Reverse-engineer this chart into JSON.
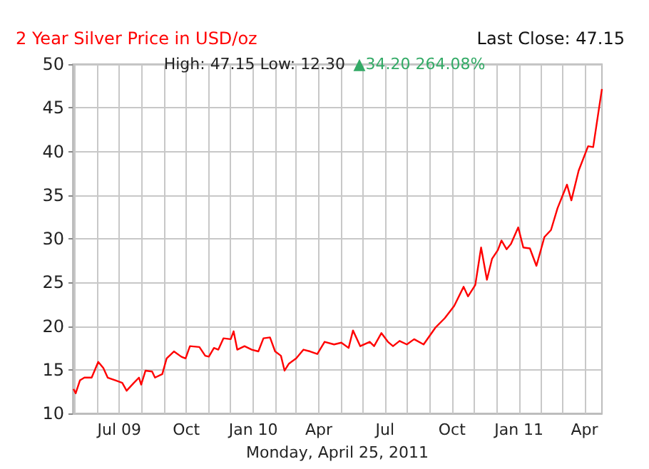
{
  "chart_data": {
    "type": "line",
    "title": "2 Year Silver Price in USD/oz",
    "subtitle": "High: 47.15 Low: 12.30",
    "xlabel": "Monday, April 25, 2011",
    "annotations": [
      "Last Close: 47.15",
      "▲34.20 264.08%"
    ],
    "x": [
      "2009-04-29",
      "2009-05-02",
      "2009-05-08",
      "2009-05-14",
      "2009-05-24",
      "2009-06-02",
      "2009-06-09",
      "2009-06-15",
      "2009-06-25",
      "2009-07-05",
      "2009-07-11",
      "2009-07-21",
      "2009-07-28",
      "2009-07-31",
      "2009-08-06",
      "2009-08-15",
      "2009-08-19",
      "2009-08-29",
      "2009-09-04",
      "2009-09-14",
      "2009-09-24",
      "2009-09-30",
      "2009-10-06",
      "2009-10-19",
      "2009-10-27",
      "2009-11-01",
      "2009-11-08",
      "2009-11-14",
      "2009-11-21",
      "2009-12-01",
      "2009-12-05",
      "2009-12-10",
      "2009-12-20",
      "2009-12-30",
      "2010-01-08",
      "2010-01-15",
      "2010-01-24",
      "2010-01-31",
      "2010-02-08",
      "2010-02-13",
      "2010-02-19",
      "2010-03-01",
      "2010-03-11",
      "2010-03-20",
      "2010-03-30",
      "2010-04-09",
      "2010-04-22",
      "2010-05-02",
      "2010-05-12",
      "2010-05-18",
      "2010-05-28",
      "2010-06-10",
      "2010-06-16",
      "2010-06-26",
      "2010-07-05",
      "2010-07-12",
      "2010-07-21",
      "2010-07-31",
      "2010-08-10",
      "2010-08-23",
      "2010-09-08",
      "2010-09-21",
      "2010-10-04",
      "2010-10-17",
      "2010-10-23",
      "2010-11-02",
      "2010-11-10",
      "2010-11-18",
      "2010-11-25",
      "2010-12-03",
      "2010-12-08",
      "2010-12-15",
      "2010-12-21",
      "2010-12-31",
      "2011-01-07",
      "2011-01-16",
      "2011-01-25",
      "2011-02-05",
      "2011-02-14",
      "2011-02-23",
      "2011-03-08",
      "2011-03-14",
      "2011-03-24",
      "2011-04-06",
      "2011-04-13",
      "2011-04-20",
      "2011-04-25"
    ],
    "series": [
      {
        "color": "#ff0000",
        "values": [
          12.8,
          12.3,
          13.8,
          14.1,
          14.1,
          15.9,
          15.2,
          14.1,
          13.8,
          13.5,
          12.6,
          13.5,
          14.1,
          13.3,
          14.9,
          14.8,
          14.1,
          14.5,
          16.3,
          17.1,
          16.5,
          16.3,
          17.7,
          17.6,
          16.6,
          16.5,
          17.5,
          17.3,
          18.6,
          18.5,
          19.4,
          17.3,
          17.7,
          17.3,
          17.1,
          18.6,
          18.7,
          17.1,
          16.6,
          14.9,
          15.7,
          16.3,
          17.3,
          17.1,
          16.8,
          18.2,
          17.9,
          18.1,
          17.5,
          19.5,
          17.7,
          18.2,
          17.7,
          19.2,
          18.2,
          17.7,
          18.3,
          17.9,
          18.5,
          17.9,
          19.8,
          20.9,
          22.3,
          24.5,
          23.4,
          24.7,
          29.0,
          25.3,
          27.7,
          28.7,
          29.8,
          28.8,
          29.4,
          31.3,
          29.0,
          28.9,
          26.9,
          30.2,
          31.0,
          33.5,
          36.2,
          34.4,
          37.8,
          40.6,
          40.5,
          44.4,
          47.15
        ]
      }
    ],
    "xlim": [
      "2009-04-28",
      "2011-04-25"
    ],
    "xticks": [
      {
        "value": "2009-05-01",
        "label": null
      },
      {
        "value": "2009-06-01",
        "label": null
      },
      {
        "value": "2009-07-01",
        "label": "Jul 09"
      },
      {
        "value": "2009-08-01",
        "label": null
      },
      {
        "value": "2009-09-01",
        "label": null
      },
      {
        "value": "2009-10-01",
        "label": "Oct"
      },
      {
        "value": "2009-11-01",
        "label": null
      },
      {
        "value": "2009-12-01",
        "label": null
      },
      {
        "value": "2010-01-01",
        "label": "Jan 10"
      },
      {
        "value": "2010-02-01",
        "label": null
      },
      {
        "value": "2010-03-01",
        "label": null
      },
      {
        "value": "2010-04-01",
        "label": "Apr"
      },
      {
        "value": "2010-05-01",
        "label": null
      },
      {
        "value": "2010-06-01",
        "label": null
      },
      {
        "value": "2010-07-01",
        "label": "Jul"
      },
      {
        "value": "2010-08-01",
        "label": null
      },
      {
        "value": "2010-09-01",
        "label": null
      },
      {
        "value": "2010-10-01",
        "label": "Oct"
      },
      {
        "value": "2010-11-01",
        "label": null
      },
      {
        "value": "2010-12-01",
        "label": null
      },
      {
        "value": "2011-01-01",
        "label": "Jan 11"
      },
      {
        "value": "2011-02-01",
        "label": null
      },
      {
        "value": "2011-03-01",
        "label": null
      },
      {
        "value": "2011-04-01",
        "label": "Apr"
      }
    ],
    "ylim": [
      10,
      50
    ],
    "yticks": [
      10,
      15,
      20,
      25,
      30,
      35,
      40,
      45,
      50
    ],
    "grid": true,
    "marker": "none",
    "line_style": "solid"
  }
}
